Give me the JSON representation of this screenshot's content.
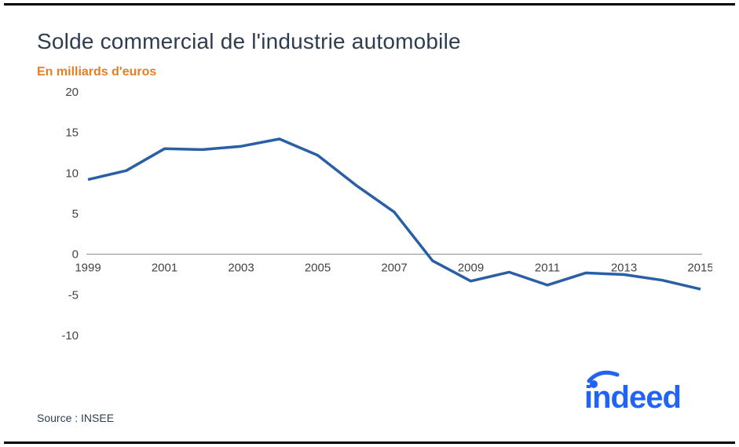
{
  "title": "Solde commercial de l'industrie automobile",
  "subtitle": "En milliards d'euros",
  "source": "Source : INSEE",
  "logo_text": "indeed",
  "chart": {
    "type": "line",
    "line_color": "#2a5fa6",
    "line_width": 3.5,
    "background_color": "#ffffff",
    "axis_color": "#888888",
    "tick_font_size": 15,
    "tick_color": "#444444",
    "title_color": "#2c3e50",
    "title_fontsize": 28,
    "subtitle_color": "#e67e22",
    "subtitle_fontsize": 16,
    "xlim": [
      1999,
      2015
    ],
    "ylim": [
      -10,
      20
    ],
    "xtick_step": 2,
    "ytick_step": 5,
    "xticks": [
      1999,
      2001,
      2003,
      2005,
      2007,
      2009,
      2011,
      2013,
      2015
    ],
    "yticks": [
      -10,
      -5,
      0,
      5,
      10,
      15,
      20
    ],
    "series": {
      "x": [
        1999,
        2000,
        2001,
        2002,
        2003,
        2004,
        2005,
        2006,
        2007,
        2008,
        2009,
        2010,
        2011,
        2012,
        2013,
        2014,
        2015
      ],
      "y": [
        9.2,
        10.3,
        13.0,
        12.9,
        13.3,
        14.2,
        12.2,
        8.5,
        5.2,
        -0.8,
        -3.3,
        -2.2,
        -3.8,
        -2.3,
        -2.5,
        -3.2,
        -4.3
      ]
    }
  },
  "logo_color": "#2164f3"
}
